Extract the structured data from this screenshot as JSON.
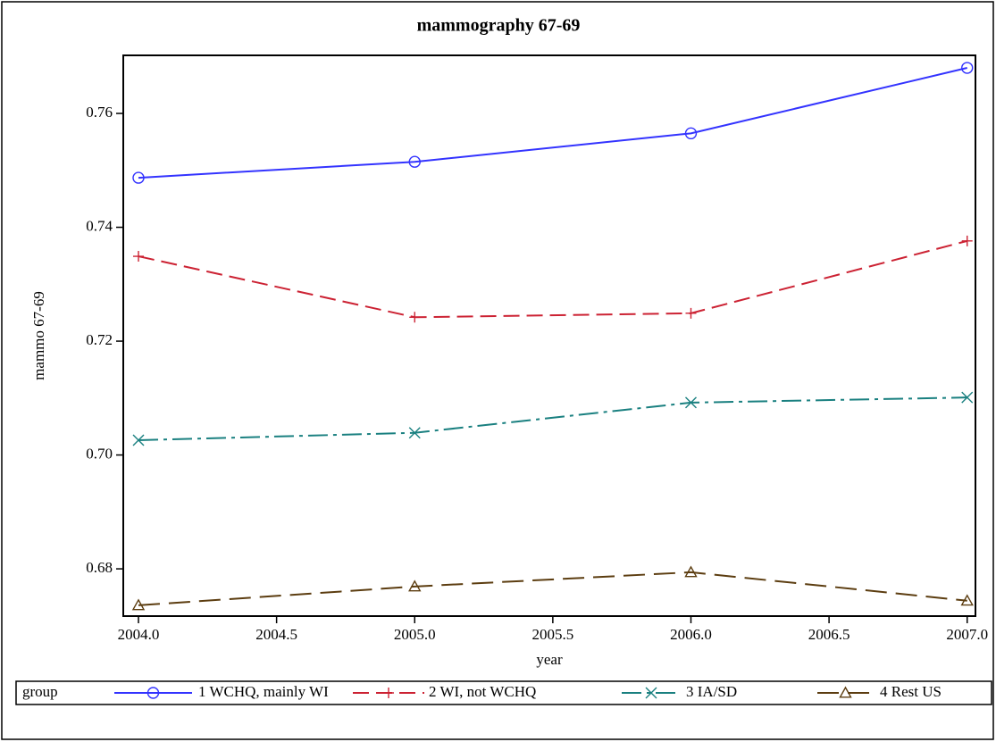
{
  "chart_data": {
    "type": "line",
    "title": "mammography 67-69",
    "x_label": "year",
    "y_label": "mammo 67-69",
    "legend_title": "group",
    "x": [
      2004,
      2005,
      2006,
      2007
    ],
    "xlim": [
      2003.945,
      2007.03
    ],
    "xticks": [
      {
        "value": 2004,
        "label": "2004.0"
      },
      {
        "value": 2004.5,
        "label": "2004.5"
      },
      {
        "value": 2005,
        "label": "2005.0"
      },
      {
        "value": 2005.5,
        "label": "2005.5"
      },
      {
        "value": 2006,
        "label": "2006.0"
      },
      {
        "value": 2006.5,
        "label": "2006.5"
      },
      {
        "value": 2007,
        "label": "2007.0"
      }
    ],
    "ylim": [
      0.6717,
      0.7702
    ],
    "yticks": [
      0.68,
      {
        "value": 0.7,
        "label": "0.70"
      },
      0.72,
      0.74,
      0.76
    ],
    "grid": false,
    "legend": "bottom",
    "series": [
      {
        "name": "1 WCHQ, mainly WI",
        "color": "#3333ff",
        "values": [
          0.7487,
          0.7515,
          0.7565,
          0.768
        ]
      },
      {
        "name": "2 WI, not WCHQ",
        "color": "#cc2233",
        "values": [
          0.7349,
          0.7242,
          0.7249,
          0.7376
        ]
      },
      {
        "name": "3 IA/SD",
        "color": "#1a8080",
        "values": [
          0.7026,
          0.7039,
          0.7092,
          0.7101
        ]
      },
      {
        "name": "4 Rest US",
        "color": "#5c3d10",
        "values": [
          0.6736,
          0.6769,
          0.6794,
          0.6744
        ]
      }
    ]
  }
}
